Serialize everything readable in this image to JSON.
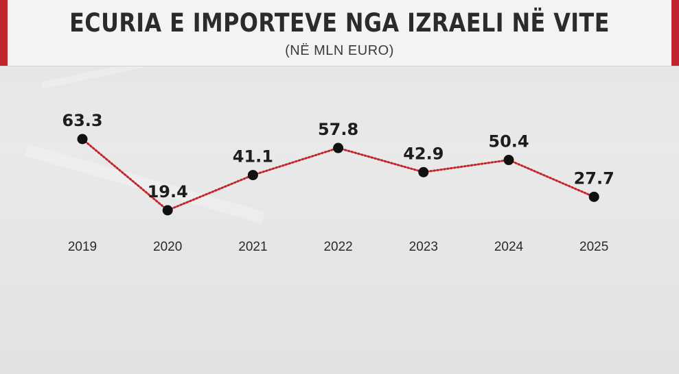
{
  "header": {
    "title": "ECURIA E IMPORTEVE NGA IZRAELI NË VITE",
    "subtitle": "(NË MLN EURO)"
  },
  "colors": {
    "accent": "#c0262c",
    "line": "#c0262c",
    "dot": "#111111",
    "text": "#1d1d1d"
  },
  "chart_data": {
    "type": "line",
    "title": "ECURIA E IMPORTEVE NGA IZRAELI NË VITE",
    "subtitle": "(NË MLN EURO)",
    "xlabel": "",
    "ylabel": "",
    "categories": [
      "2019",
      "2020",
      "2021",
      "2022",
      "2023",
      "2024",
      "2025"
    ],
    "values": [
      63.3,
      19.4,
      41.1,
      57.8,
      42.9,
      50.4,
      27.7
    ],
    "labels": [
      "63.3",
      "19.4",
      "41.1",
      "57.8",
      "42.9",
      "50.4",
      "27.7"
    ],
    "ylim": [
      19.4,
      63.3
    ],
    "grid": false,
    "legend": "none"
  }
}
